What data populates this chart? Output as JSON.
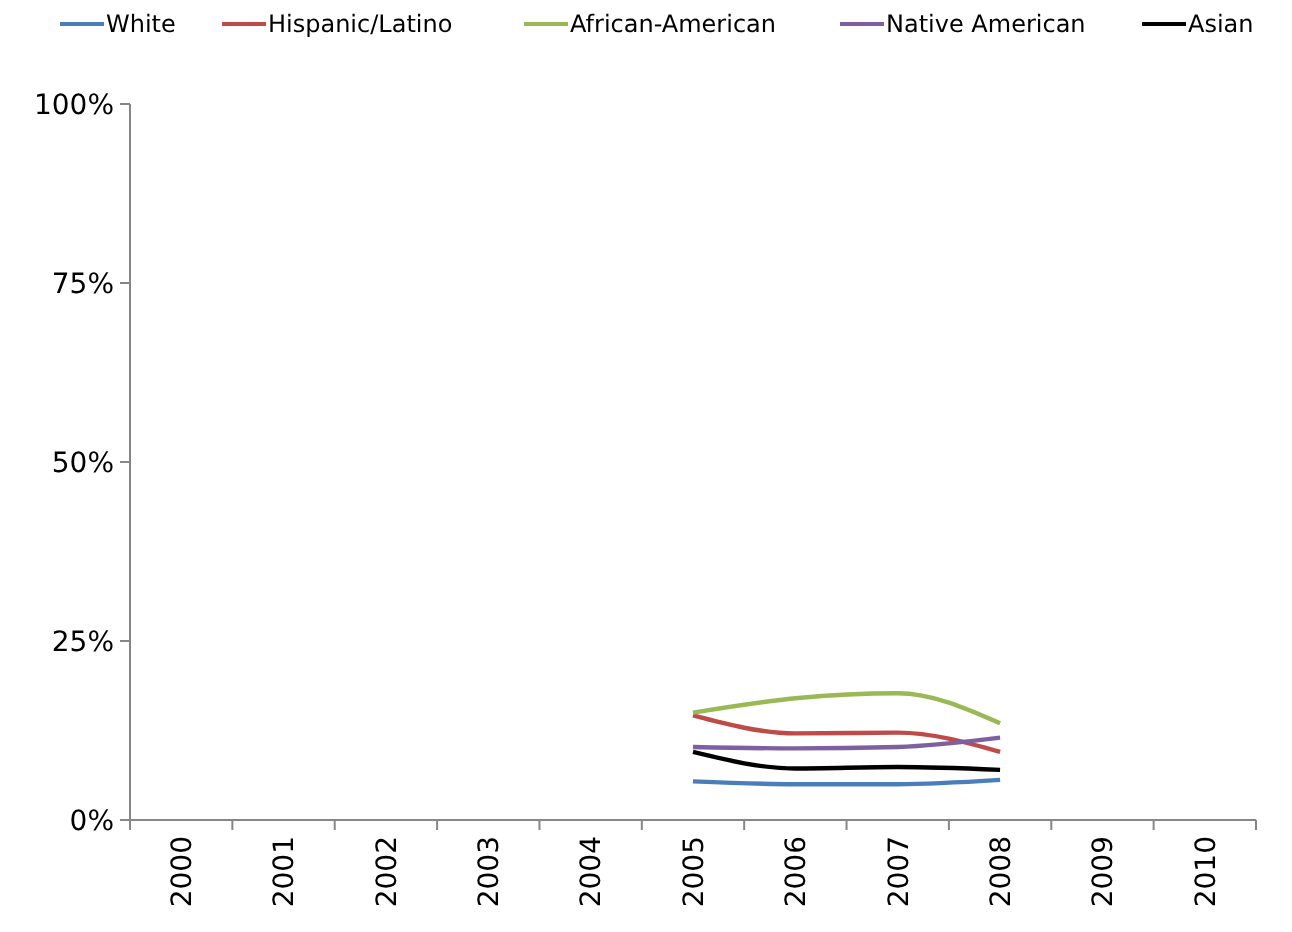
{
  "chart_data": {
    "type": "line",
    "categories": [
      "2000",
      "2001",
      "2002",
      "2003",
      "2004",
      "2005",
      "2006",
      "2007",
      "2008",
      "2009",
      "2010"
    ],
    "series": [
      {
        "name": "White",
        "color": "#4a7ebb",
        "values": [
          null,
          null,
          null,
          null,
          null,
          5.4,
          5,
          5,
          5.6,
          null,
          null
        ]
      },
      {
        "name": "Hispanic/Latino",
        "color": "#be4b48",
        "values": [
          null,
          null,
          null,
          null,
          null,
          14.6,
          12.1,
          12.2,
          9.5,
          null,
          null
        ]
      },
      {
        "name": "African-American",
        "color": "#98b954",
        "values": [
          null,
          null,
          null,
          null,
          null,
          15,
          17,
          17.7,
          13.5,
          null,
          null
        ]
      },
      {
        "name": "Native American",
        "color": "#7d60a0",
        "values": [
          null,
          null,
          null,
          null,
          null,
          10.2,
          10,
          10.2,
          11.5,
          null,
          null
        ]
      },
      {
        "name": "Asian",
        "color": "#000000",
        "values": [
          null,
          null,
          null,
          null,
          null,
          9.5,
          7.2,
          7.4,
          7,
          null,
          null
        ]
      }
    ],
    "ylim": [
      0,
      100
    ],
    "yticks": [
      {
        "value": 0,
        "label": "0%"
      },
      {
        "value": 25,
        "label": "25%"
      },
      {
        "value": 50,
        "label": "50%"
      },
      {
        "value": 75,
        "label": "75%"
      },
      {
        "value": 100,
        "label": "100%"
      }
    ],
    "grid": false,
    "legend": "top",
    "marker": "none",
    "line_style": "solid"
  }
}
